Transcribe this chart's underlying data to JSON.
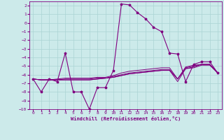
{
  "xlabel": "Windchill (Refroidissement éolien,°C)",
  "hours": [
    0,
    1,
    2,
    3,
    4,
    5,
    6,
    7,
    8,
    9,
    10,
    11,
    12,
    13,
    14,
    15,
    16,
    17,
    18,
    19,
    20,
    21,
    22,
    23
  ],
  "line1": [
    -6.5,
    -8.0,
    -6.5,
    -6.8,
    -3.5,
    -8.0,
    -8.0,
    -10.0,
    -7.5,
    -7.5,
    -5.5,
    2.2,
    2.1,
    1.2,
    0.5,
    -0.5,
    -1.0,
    -3.5,
    -3.6,
    -6.8,
    -4.8,
    -4.5,
    -4.5,
    -5.8
  ],
  "line2": [
    -6.5,
    -6.6,
    -6.6,
    -6.6,
    -6.6,
    -6.6,
    -6.6,
    -6.6,
    -6.5,
    -6.4,
    -6.3,
    -6.1,
    -5.9,
    -5.8,
    -5.7,
    -5.6,
    -5.5,
    -5.5,
    -6.8,
    -5.3,
    -5.2,
    -4.9,
    -4.9,
    -5.8
  ],
  "line3": [
    -6.5,
    -6.6,
    -6.6,
    -6.6,
    -6.6,
    -6.6,
    -6.6,
    -6.6,
    -6.5,
    -6.4,
    -6.3,
    -6.1,
    -5.9,
    -5.8,
    -5.7,
    -5.6,
    -5.5,
    -5.5,
    -6.5,
    -5.3,
    -5.1,
    -4.8,
    -4.8,
    -5.8
  ],
  "line4": [
    -6.5,
    -6.6,
    -6.6,
    -6.6,
    -6.5,
    -6.5,
    -6.5,
    -6.5,
    -6.4,
    -6.4,
    -6.2,
    -6.0,
    -5.8,
    -5.7,
    -5.6,
    -5.5,
    -5.4,
    -5.4,
    -6.5,
    -5.2,
    -5.0,
    -4.8,
    -4.8,
    -5.8
  ],
  "line5": [
    -6.5,
    -6.6,
    -6.6,
    -6.5,
    -6.4,
    -6.4,
    -6.4,
    -6.4,
    -6.3,
    -6.3,
    -6.1,
    -5.8,
    -5.6,
    -5.5,
    -5.4,
    -5.3,
    -5.2,
    -5.2,
    -6.5,
    -5.1,
    -4.9,
    -4.8,
    -4.8,
    -5.8
  ],
  "line_color": "#800080",
  "bg_color": "#cceaea",
  "grid_color": "#aad4d4",
  "ylim": [
    -10,
    2.5
  ],
  "yticks": [
    -10,
    -9,
    -8,
    -7,
    -6,
    -5,
    -4,
    -3,
    -2,
    -1,
    0,
    1,
    2
  ],
  "xlim": [
    -0.5,
    23.5
  ],
  "xticks": [
    0,
    1,
    2,
    3,
    4,
    5,
    6,
    7,
    8,
    9,
    10,
    11,
    12,
    13,
    14,
    15,
    16,
    17,
    18,
    19,
    20,
    21,
    22,
    23
  ]
}
